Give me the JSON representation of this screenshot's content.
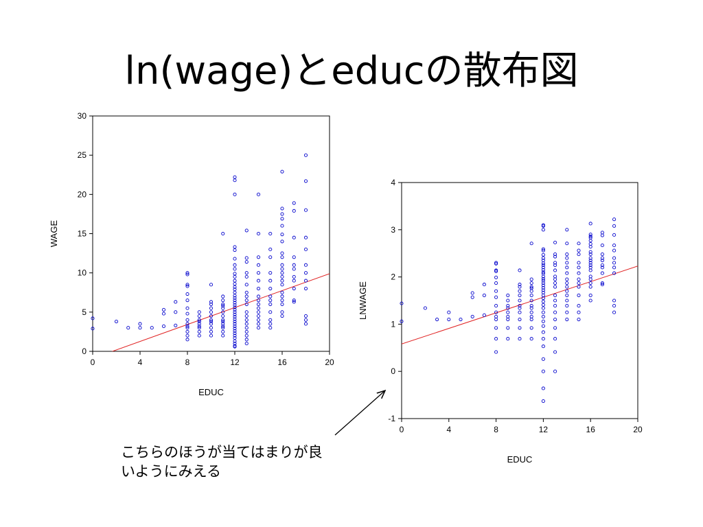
{
  "slide": {
    "title": "ln(wage)とeducの散布図",
    "note_line1": "こちらのほうが当てはまりが良",
    "note_line2": "いようにみえる"
  },
  "colors": {
    "points": "#0000cc",
    "fit_line": "#e02020",
    "axis": "#000000",
    "arrow": "#000000"
  },
  "chart_data": [
    {
      "type": "scatter",
      "xlabel": "EDUC",
      "ylabel": "WAGE",
      "xlim": [
        0,
        20
      ],
      "ylim": [
        0,
        30
      ],
      "xticks": [
        "0",
        "4",
        "8",
        "12",
        "16",
        "20"
      ],
      "yticks": [
        "0",
        "5",
        "10",
        "15",
        "20",
        "25",
        "30"
      ],
      "grid": false,
      "fit_line": {
        "x": [
          0,
          20
        ],
        "y": [
          -0.9,
          9.9
        ]
      },
      "points": {
        "x": [
          0,
          0,
          2,
          3,
          4,
          4,
          5,
          6,
          6,
          6,
          7,
          7,
          7,
          8,
          8,
          8,
          8,
          8,
          8,
          8,
          8,
          8,
          8,
          8,
          8,
          8,
          8,
          8,
          9,
          9,
          9,
          9,
          9,
          9,
          9,
          9,
          9,
          10,
          10,
          10,
          10,
          10,
          10,
          10,
          10,
          10,
          10,
          10,
          10,
          11,
          11,
          11,
          11,
          11,
          11,
          11,
          11,
          11,
          11,
          11,
          11,
          11,
          11,
          11,
          12,
          12,
          12,
          12,
          12,
          12,
          12,
          12,
          12,
          12,
          12,
          12,
          12,
          12,
          12,
          12,
          12,
          12,
          12,
          12,
          12,
          12,
          12,
          12,
          12,
          12,
          12,
          12,
          12,
          12,
          12,
          12,
          12,
          12,
          12,
          12,
          12,
          12,
          13,
          13,
          13,
          13,
          13,
          13,
          13,
          13,
          13,
          13,
          13,
          13,
          13,
          13,
          13,
          13,
          13,
          13,
          13,
          14,
          14,
          14,
          14,
          14,
          14,
          14,
          14,
          14,
          14,
          14,
          14,
          14,
          14,
          14,
          14,
          15,
          15,
          15,
          15,
          15,
          15,
          15,
          15,
          15,
          15,
          15,
          15,
          15,
          16,
          16,
          16,
          16,
          16,
          16,
          16,
          16,
          16,
          16,
          16,
          16,
          16,
          16,
          16,
          16,
          16,
          16,
          16,
          16,
          16,
          17,
          17,
          17,
          17,
          17,
          17,
          17,
          17,
          17,
          17,
          17,
          18,
          18,
          18,
          18,
          18,
          18,
          18,
          18,
          18,
          18,
          18,
          18
        ],
        "y": [
          4.2,
          2.9,
          3.8,
          3.0,
          3.5,
          3.0,
          3.0,
          5.3,
          4.8,
          3.2,
          6.3,
          5.0,
          3.3,
          10.0,
          9.8,
          8.5,
          8.3,
          7.3,
          6.5,
          5.5,
          4.8,
          4.0,
          3.5,
          3.2,
          3.0,
          2.5,
          2.0,
          1.5,
          5.0,
          4.5,
          4.0,
          3.8,
          3.5,
          3.2,
          3.0,
          2.5,
          2.0,
          8.5,
          6.3,
          6.0,
          5.5,
          5.0,
          4.5,
          4.0,
          3.8,
          3.5,
          3.0,
          2.5,
          2.0,
          15.0,
          7.0,
          6.5,
          6.0,
          5.8,
          5.5,
          5.0,
          4.5,
          4.0,
          3.8,
          3.5,
          3.2,
          3.0,
          2.5,
          2.0,
          22.2,
          21.8,
          20.0,
          13.3,
          12.9,
          11.8,
          11.0,
          10.5,
          9.9,
          9.5,
          9.0,
          8.6,
          8.2,
          7.9,
          7.5,
          7.1,
          6.8,
          6.5,
          6.2,
          5.9,
          5.6,
          5.3,
          5.0,
          4.7,
          4.4,
          4.1,
          3.8,
          3.5,
          3.2,
          2.9,
          2.6,
          2.3,
          2.0,
          1.7,
          1.3,
          1.0,
          0.7,
          0.6,
          15.4,
          11.9,
          11.4,
          10.0,
          9.5,
          8.5,
          7.5,
          7.0,
          6.5,
          6.0,
          5.0,
          4.5,
          4.0,
          3.5,
          3.0,
          2.5,
          2.0,
          1.5,
          1.0,
          20.0,
          15.0,
          12.0,
          11.0,
          10.0,
          9.0,
          8.0,
          7.0,
          6.5,
          6.0,
          5.5,
          5.0,
          4.5,
          4.0,
          3.5,
          3.0,
          15.0,
          13.0,
          12.0,
          10.0,
          9.0,
          8.0,
          7.0,
          6.5,
          6.0,
          5.0,
          4.0,
          3.5,
          3.0,
          22.9,
          18.2,
          17.5,
          16.9,
          16.0,
          14.9,
          14.0,
          12.5,
          12.0,
          11.0,
          10.5,
          10.0,
          9.5,
          9.0,
          8.5,
          7.5,
          7.0,
          6.5,
          6.0,
          5.0,
          4.5,
          18.9,
          17.9,
          14.5,
          12.0,
          11.0,
          10.5,
          9.5,
          9.0,
          8.0,
          6.5,
          6.3,
          25.0,
          21.7,
          18.0,
          14.5,
          13.0,
          11.0,
          10.0,
          9.0,
          8.0,
          4.5,
          4.0,
          3.5
        ]
      }
    },
    {
      "type": "scatter",
      "xlabel": "EDUC",
      "ylabel": "LNWAGE",
      "xlim": [
        0,
        20
      ],
      "ylim": [
        -1,
        4
      ],
      "xticks": [
        "0",
        "4",
        "8",
        "12",
        "16",
        "20"
      ],
      "yticks": [
        "-1",
        "0",
        "1",
        "2",
        "3",
        "4"
      ],
      "grid": false,
      "fit_line": {
        "x": [
          0,
          20
        ],
        "y": [
          0.58,
          2.23
        ]
      },
      "points": {
        "x": [
          0,
          0,
          2,
          3,
          4,
          4,
          5,
          6,
          6,
          6,
          7,
          7,
          7,
          8,
          8,
          8,
          8,
          8,
          8,
          8,
          8,
          8,
          8,
          8,
          8,
          8,
          8,
          8,
          9,
          9,
          9,
          9,
          9,
          9,
          9,
          9,
          9,
          10,
          10,
          10,
          10,
          10,
          10,
          10,
          10,
          10,
          10,
          10,
          10,
          11,
          11,
          11,
          11,
          11,
          11,
          11,
          11,
          11,
          11,
          11,
          11,
          11,
          11,
          11,
          12,
          12,
          12,
          12,
          12,
          12,
          12,
          12,
          12,
          12,
          12,
          12,
          12,
          12,
          12,
          12,
          12,
          12,
          12,
          12,
          12,
          12,
          12,
          12,
          12,
          12,
          12,
          12,
          12,
          12,
          12,
          12,
          12,
          12,
          12,
          12,
          12,
          12,
          13,
          13,
          13,
          13,
          13,
          13,
          13,
          13,
          13,
          13,
          13,
          13,
          13,
          13,
          13,
          13,
          13,
          13,
          13,
          14,
          14,
          14,
          14,
          14,
          14,
          14,
          14,
          14,
          14,
          14,
          14,
          14,
          14,
          14,
          14,
          15,
          15,
          15,
          15,
          15,
          15,
          15,
          15,
          15,
          15,
          15,
          15,
          15,
          16,
          16,
          16,
          16,
          16,
          16,
          16,
          16,
          16,
          16,
          16,
          16,
          16,
          16,
          16,
          16,
          16,
          16,
          16,
          16,
          16,
          17,
          17,
          17,
          17,
          17,
          17,
          17,
          17,
          17,
          17,
          17,
          18,
          18,
          18,
          18,
          18,
          18,
          18,
          18,
          18,
          18,
          18,
          18
        ],
        "y": [
          1.44,
          1.06,
          1.34,
          1.1,
          1.25,
          1.1,
          1.1,
          1.66,
          1.57,
          1.16,
          1.84,
          1.61,
          1.19,
          2.3,
          2.28,
          2.14,
          2.12,
          1.99,
          1.87,
          1.7,
          1.57,
          1.39,
          1.25,
          1.16,
          1.1,
          0.92,
          0.69,
          0.41,
          1.61,
          1.5,
          1.39,
          1.34,
          1.25,
          1.16,
          1.1,
          0.92,
          0.69,
          2.14,
          1.84,
          1.79,
          1.7,
          1.61,
          1.5,
          1.39,
          1.34,
          1.25,
          1.1,
          0.92,
          0.69,
          2.71,
          1.95,
          1.87,
          1.79,
          1.76,
          1.7,
          1.61,
          1.5,
          1.39,
          1.34,
          1.25,
          1.16,
          1.1,
          0.92,
          0.69,
          3.1,
          3.08,
          3.0,
          2.59,
          2.56,
          2.47,
          2.4,
          2.35,
          2.29,
          2.25,
          2.2,
          2.15,
          2.1,
          2.07,
          2.01,
          1.96,
          1.92,
          1.87,
          1.82,
          1.77,
          1.72,
          1.67,
          1.61,
          1.55,
          1.48,
          1.41,
          1.34,
          1.25,
          1.16,
          1.06,
          0.96,
          0.83,
          0.69,
          0.53,
          0.26,
          0.0,
          -0.36,
          -0.63,
          2.73,
          2.48,
          2.43,
          2.3,
          2.25,
          2.14,
          2.01,
          1.95,
          1.87,
          1.79,
          1.61,
          1.5,
          1.39,
          1.25,
          1.1,
          0.92,
          0.69,
          0.41,
          0.0,
          3.0,
          2.71,
          2.48,
          2.4,
          2.3,
          2.2,
          2.08,
          1.95,
          1.87,
          1.79,
          1.7,
          1.61,
          1.5,
          1.39,
          1.25,
          1.1,
          2.71,
          2.56,
          2.48,
          2.3,
          2.2,
          2.08,
          1.95,
          1.87,
          1.79,
          1.61,
          1.39,
          1.25,
          1.1,
          3.13,
          2.9,
          2.86,
          2.83,
          2.77,
          2.7,
          2.64,
          2.53,
          2.48,
          2.4,
          2.35,
          2.3,
          2.25,
          2.2,
          2.14,
          2.01,
          1.95,
          1.87,
          1.79,
          1.61,
          1.5,
          2.94,
          2.88,
          2.67,
          2.48,
          2.4,
          2.35,
          2.25,
          2.2,
          2.08,
          1.87,
          1.84,
          3.22,
          3.08,
          2.89,
          2.67,
          2.56,
          2.4,
          2.3,
          2.2,
          2.08,
          1.5,
          1.39,
          1.25
        ]
      }
    }
  ]
}
